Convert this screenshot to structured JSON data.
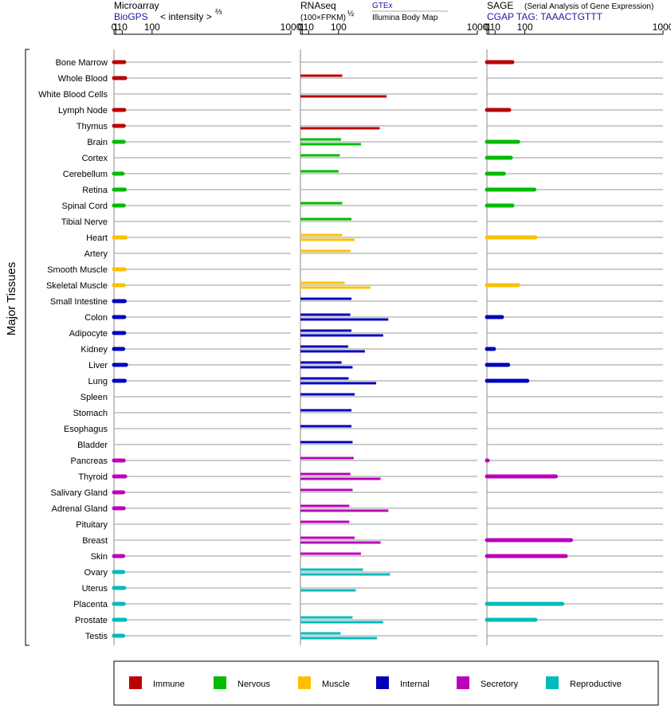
{
  "colors": {
    "Immune": "#bb0000",
    "Nervous": "#00bb00",
    "Muscle": "#ffbf00",
    "Internal": "#0000bb",
    "Secretory": "#bb00bb",
    "Reproductive": "#00bbbb"
  },
  "headers": {
    "micro_title": "Microarray",
    "micro_sub_link": "BioGPS",
    "micro_sub_text": "< intensity >",
    "micro_sup": "⅔",
    "rna_title": "RNAseq",
    "rna_sub": "(100×FPKM)",
    "rna_sup": "½",
    "rna_gtex": "GTEx",
    "rna_ibm": "Illumina Body Map",
    "sage_title": "SAGE",
    "sage_note": "(Serial Analysis of Gene Expression)",
    "sage_tag": "CGAP TAG: TAAACTGTTT"
  },
  "y_group_label": "Major Tissues",
  "legend_labels": [
    "Immune",
    "Nervous",
    "Muscle",
    "Internal",
    "Secretory",
    "Reproductive"
  ],
  "chart_data": {
    "type": "bar",
    "xaxis": {
      "scale": "power",
      "ticks": [
        0,
        1,
        10,
        100,
        1000
      ],
      "xlim": [
        0,
        1000
      ]
    },
    "tissues": [
      {
        "name": "Bone Marrow",
        "group": "Immune"
      },
      {
        "name": "Whole Blood",
        "group": "Immune"
      },
      {
        "name": "White Blood Cells",
        "group": "Immune"
      },
      {
        "name": "Lymph Node",
        "group": "Immune"
      },
      {
        "name": "Thymus",
        "group": "Immune"
      },
      {
        "name": "Brain",
        "group": "Nervous"
      },
      {
        "name": "Cortex",
        "group": "Nervous"
      },
      {
        "name": "Cerebellum",
        "group": "Nervous"
      },
      {
        "name": "Retina",
        "group": "Nervous"
      },
      {
        "name": "Spinal Cord",
        "group": "Nervous"
      },
      {
        "name": "Tibial Nerve",
        "group": "Nervous"
      },
      {
        "name": "Heart",
        "group": "Muscle"
      },
      {
        "name": "Artery",
        "group": "Muscle"
      },
      {
        "name": "Smooth Muscle",
        "group": "Muscle"
      },
      {
        "name": "Skeletal Muscle",
        "group": "Muscle"
      },
      {
        "name": "Small Intestine",
        "group": "Internal"
      },
      {
        "name": "Colon",
        "group": "Internal"
      },
      {
        "name": "Adipocyte",
        "group": "Internal"
      },
      {
        "name": "Kidney",
        "group": "Internal"
      },
      {
        "name": "Liver",
        "group": "Internal"
      },
      {
        "name": "Lung",
        "group": "Internal"
      },
      {
        "name": "Spleen",
        "group": "Internal"
      },
      {
        "name": "Stomach",
        "group": "Internal"
      },
      {
        "name": "Esophagus",
        "group": "Internal"
      },
      {
        "name": "Bladder",
        "group": "Internal"
      },
      {
        "name": "Pancreas",
        "group": "Secretory"
      },
      {
        "name": "Thyroid",
        "group": "Secretory"
      },
      {
        "name": "Salivary Gland",
        "group": "Secretory"
      },
      {
        "name": "Adrenal Gland",
        "group": "Secretory"
      },
      {
        "name": "Pituitary",
        "group": "Secretory"
      },
      {
        "name": "Breast",
        "group": "Secretory"
      },
      {
        "name": "Skin",
        "group": "Secretory"
      },
      {
        "name": "Ovary",
        "group": "Reproductive"
      },
      {
        "name": "Uterus",
        "group": "Reproductive"
      },
      {
        "name": "Placenta",
        "group": "Reproductive"
      },
      {
        "name": "Prostate",
        "group": "Reproductive"
      },
      {
        "name": "Testis",
        "group": "Reproductive"
      }
    ],
    "microarray": [
      14,
      16,
      null,
      14,
      13,
      13,
      null,
      11,
      15,
      13,
      null,
      17,
      null,
      15,
      13,
      15,
      14,
      14,
      12,
      18,
      15,
      null,
      null,
      null,
      null,
      13,
      16,
      12,
      13,
      null,
      null,
      12,
      12,
      14,
      13,
      16,
      12
    ],
    "rnaseq_gtex": [
      null,
      115,
      null,
      null,
      null,
      110,
      105,
      100,
      null,
      115,
      155,
      115,
      150,
      null,
      125,
      155,
      150,
      155,
      140,
      112,
      142,
      170,
      155,
      155,
      160,
      165,
      150,
      160,
      145,
      145,
      170,
      200,
      210,
      null,
      null,
      160,
      108
    ],
    "rnaseq_ibm": [
      null,
      null,
      340,
      null,
      300,
      200,
      null,
      null,
      null,
      null,
      null,
      170,
      null,
      null,
      250,
      null,
      350,
      320,
      220,
      160,
      280,
      null,
      null,
      null,
      null,
      null,
      305,
      null,
      350,
      null,
      305,
      null,
      360,
      175,
      null,
      320,
      285
    ],
    "sage": [
      55,
      null,
      null,
      45,
      null,
      75,
      50,
      30,
      140,
      55,
      null,
      145,
      null,
      null,
      75,
      null,
      25,
      null,
      8,
      42,
      110,
      null,
      null,
      null,
      null,
      0.02,
      245,
      null,
      null,
      null,
      330,
      300,
      null,
      null,
      280,
      145,
      null
    ]
  }
}
